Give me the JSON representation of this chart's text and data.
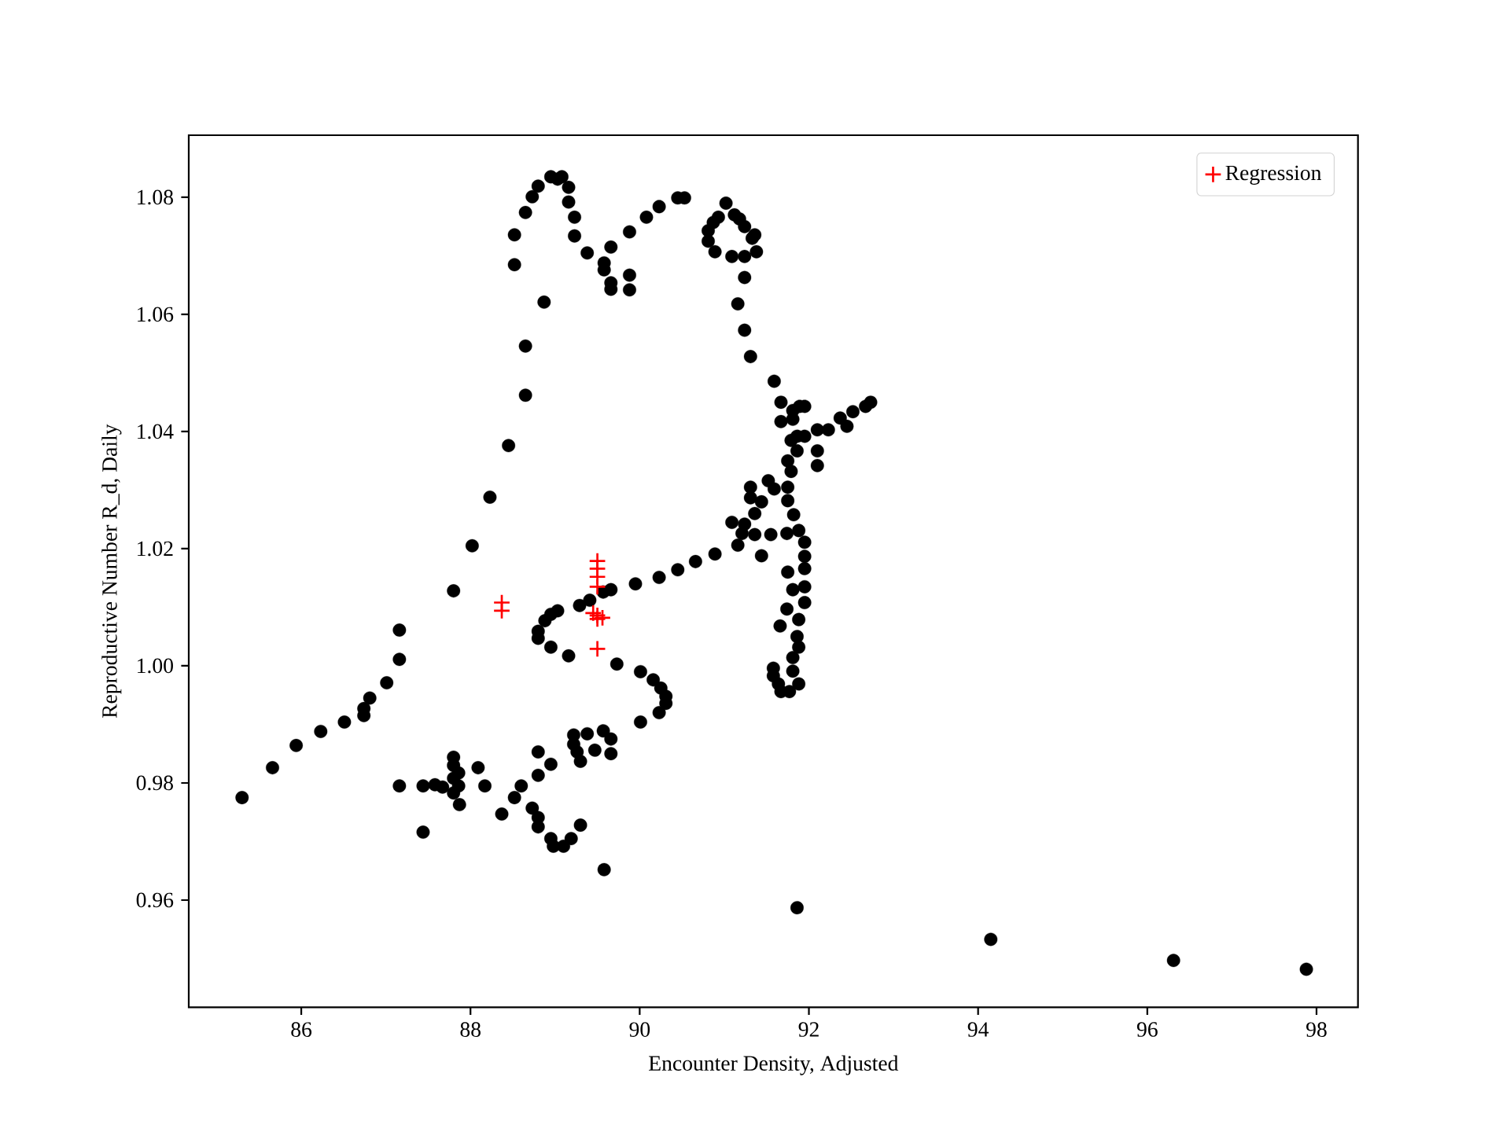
{
  "chart_data": {
    "type": "scatter",
    "xlabel": "Encounter Density, Adjusted",
    "ylabel": "Reproductive Number R_d, Daily",
    "xlim": [
      84.67,
      98.49
    ],
    "ylim": [
      0.9417,
      1.0906
    ],
    "xticks": [
      86,
      88,
      90,
      92,
      94,
      96,
      98
    ],
    "yticks": [
      0.96,
      0.98,
      {
        "value": 1.0,
        "label": "1.00"
      },
      1.02,
      1.04,
      1.06,
      1.08
    ],
    "legend": "top right",
    "series": [
      {
        "color": "#000000",
        "marker": "circle",
        "x": [
          85.3,
          85.66,
          85.94,
          86.23,
          86.51,
          86.74,
          86.74,
          86.81,
          87.01,
          87.16,
          87.16,
          87.8,
          88.02,
          88.23,
          88.45,
          88.65,
          88.65,
          88.87,
          88.52,
          88.52,
          88.65,
          88.73,
          88.8,
          88.95,
          89.03,
          89.08,
          89.16,
          89.16,
          89.23,
          89.23,
          89.38,
          89.58,
          89.58,
          89.66,
          89.66,
          89.66,
          89.88,
          89.88,
          89.88,
          90.08,
          90.23,
          90.45,
          90.53,
          91.02,
          90.93,
          90.87,
          90.81,
          90.81,
          90.89,
          91.09,
          91.12,
          91.18,
          91.24,
          91.36,
          91.33,
          91.38,
          91.24,
          91.24,
          91.16,
          91.24,
          91.31,
          91.59,
          91.67,
          91.81,
          91.89,
          91.95,
          91.67,
          91.81,
          91.79,
          91.86,
          91.95,
          92.1,
          92.1,
          92.1,
          92.23,
          92.37,
          92.45,
          92.52,
          92.67,
          92.73,
          91.86,
          91.75,
          91.79,
          91.75,
          91.52,
          91.59,
          91.31,
          91.31,
          91.44,
          91.75,
          91.36,
          91.24,
          91.09,
          91.82,
          91.21,
          91.36,
          91.55,
          91.74,
          91.88,
          91.95,
          91.95,
          91.95,
          91.75,
          91.81,
          91.16,
          91.44,
          90.89,
          90.66,
          90.45,
          90.23,
          89.95,
          89.66,
          89.57,
          89.41,
          89.29,
          89.03,
          88.95,
          88.88,
          88.8,
          88.8,
          88.95,
          89.16,
          89.73,
          90.01,
          90.16,
          90.25,
          90.31,
          90.31,
          90.23,
          90.01,
          89.22,
          89.38,
          89.57,
          89.66,
          89.66,
          89.47,
          89.26,
          89.3,
          89.22,
          88.8,
          88.95,
          88.8,
          87.16,
          87.44,
          87.58,
          87.67,
          87.8,
          87.8,
          87.86,
          87.8,
          87.86,
          87.8,
          87.87,
          87.44,
          88.09,
          88.17,
          88.37,
          88.52,
          88.6,
          88.73,
          88.8,
          88.8,
          88.95,
          88.98,
          89.1,
          89.19,
          89.3,
          89.58,
          91.95,
          91.95,
          91.74,
          91.88,
          91.66,
          91.86,
          91.88,
          91.81,
          91.81,
          91.58,
          91.58,
          91.64,
          91.67,
          91.77,
          91.88,
          91.86,
          94.15,
          96.31,
          97.88
        ],
        "values": [
          0.9775,
          0.9826,
          0.9864,
          0.9888,
          0.9904,
          0.9915,
          0.9927,
          0.9945,
          0.9971,
          1.0011,
          1.0061,
          1.0128,
          1.0205,
          1.0288,
          1.0376,
          1.0462,
          1.0546,
          1.0621,
          1.0685,
          1.0736,
          1.0774,
          1.0801,
          1.0819,
          1.0835,
          1.0831,
          1.0835,
          1.0817,
          1.0792,
          1.0766,
          1.0734,
          1.0705,
          1.0688,
          1.0676,
          1.0715,
          1.0654,
          1.0643,
          1.0667,
          1.0642,
          1.0741,
          1.0766,
          1.0784,
          1.0799,
          1.0799,
          1.079,
          1.0766,
          1.0757,
          1.0743,
          1.0725,
          1.0707,
          1.0699,
          1.077,
          1.0763,
          1.075,
          1.0736,
          1.073,
          1.0707,
          1.0699,
          1.0663,
          1.0618,
          1.0573,
          1.0528,
          1.0486,
          1.045,
          1.0436,
          1.0443,
          1.0443,
          1.0417,
          1.0421,
          1.0385,
          1.0392,
          1.0392,
          1.0403,
          1.0367,
          1.0342,
          1.0403,
          1.0423,
          1.0409,
          1.0434,
          1.0443,
          1.045,
          1.0367,
          1.035,
          1.0332,
          1.0305,
          1.0316,
          1.0302,
          1.0305,
          1.0287,
          1.028,
          1.0282,
          1.026,
          1.0242,
          1.0245,
          1.0258,
          1.0226,
          1.0224,
          1.0224,
          1.0226,
          1.0231,
          1.0211,
          1.0187,
          1.0166,
          1.016,
          1.013,
          1.0206,
          1.0188,
          1.0191,
          1.0178,
          1.0164,
          1.0151,
          1.014,
          1.013,
          1.0126,
          1.0112,
          1.0103,
          1.0094,
          1.0088,
          1.0077,
          1.0059,
          1.0047,
          1.0032,
          1.0017,
          1.0003,
          0.999,
          0.9976,
          0.9962,
          0.9948,
          0.9936,
          0.992,
          0.9904,
          0.9882,
          0.9884,
          0.9889,
          0.9875,
          0.985,
          0.9856,
          0.9853,
          0.9837,
          0.9866,
          0.9853,
          0.9832,
          0.9813,
          0.9795,
          0.9795,
          0.9797,
          0.9793,
          0.9844,
          0.983,
          0.9817,
          0.9808,
          0.9795,
          0.9783,
          0.9763,
          0.9716,
          0.9826,
          0.9795,
          0.9747,
          0.9775,
          0.9795,
          0.9757,
          0.9741,
          0.9725,
          0.9705,
          0.9692,
          0.9692,
          0.9705,
          0.9728,
          0.9652,
          1.0135,
          1.0108,
          1.0097,
          1.0079,
          1.0068,
          1.005,
          1.0032,
          1.0014,
          0.9991,
          0.9996,
          0.9983,
          0.9969,
          0.9956,
          0.9956,
          0.9969,
          0.9587,
          0.9533,
          0.9497,
          0.9482
        ]
      },
      {
        "name": "Regression",
        "color": "#ff0000",
        "marker": "cross",
        "x": [
          88.37,
          88.37,
          89.5,
          89.5,
          89.5,
          89.5,
          89.45,
          89.5,
          89.56,
          89.5,
          89.5
        ],
        "values": [
          1.0108,
          1.0094,
          1.0179,
          1.0166,
          1.0152,
          1.0135,
          1.009,
          1.0086,
          1.0082,
          1.008,
          1.0029
        ]
      }
    ]
  }
}
